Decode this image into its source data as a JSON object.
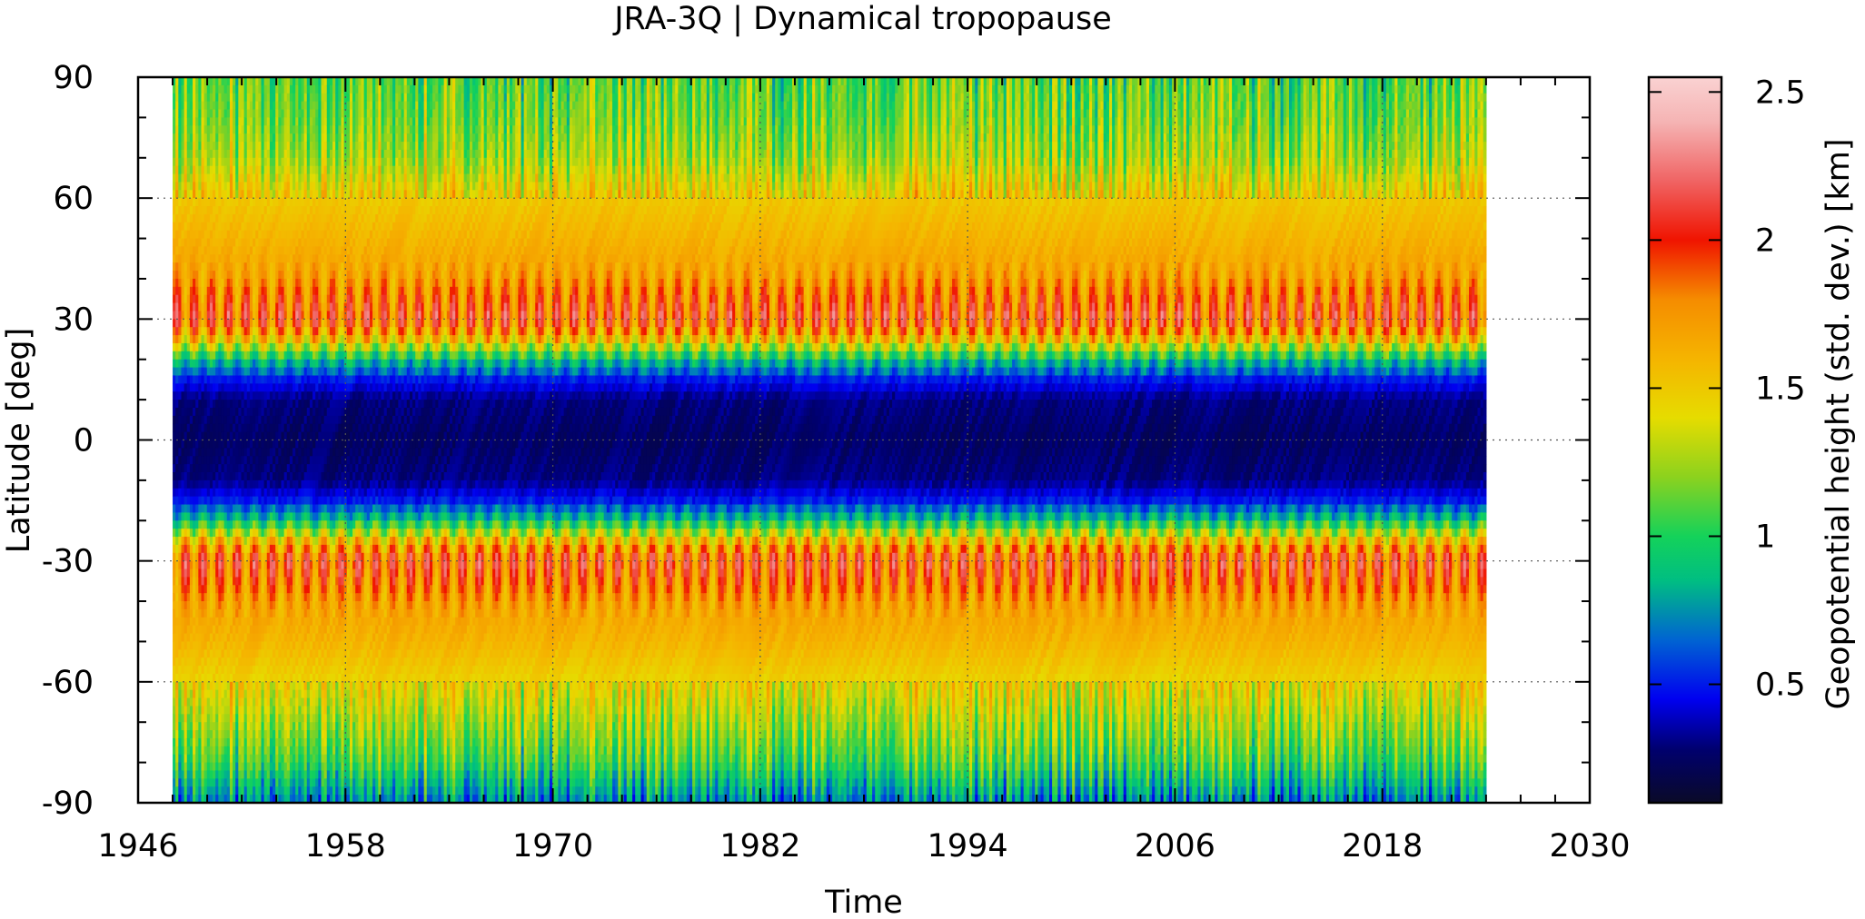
{
  "chart_data": {
    "type": "heatmap",
    "title": "JRA-3Q | Dynamical tropopause",
    "xlabel": "Time",
    "ylabel": "Latitude [deg]",
    "xlim": [
      1946,
      2030
    ],
    "ylim": [
      -90,
      90
    ],
    "x_ticks": [
      "1946",
      "1958",
      "1970",
      "1982",
      "1994",
      "2006",
      "2018",
      "2030"
    ],
    "y_ticks": [
      "-90",
      "-60",
      "-30",
      "0",
      "30",
      "60",
      "90"
    ],
    "data_x_range": [
      1948,
      2024
    ],
    "grid": true,
    "colorbar": {
      "label": "Geopotential height (std. dev.) [km]",
      "range": [
        0.1,
        2.55
      ],
      "ticks": [
        "0.5",
        "1",
        "1.5",
        "2",
        "2.5"
      ],
      "colormap": [
        [
          0.1,
          "#0a0a28"
        ],
        [
          0.28,
          "#00006e"
        ],
        [
          0.45,
          "#0000f0"
        ],
        [
          0.65,
          "#0064d2"
        ],
        [
          0.85,
          "#00be82"
        ],
        [
          1.0,
          "#14d25a"
        ],
        [
          1.2,
          "#8cd21e"
        ],
        [
          1.4,
          "#e6dc00"
        ],
        [
          1.6,
          "#f5b400"
        ],
        [
          1.8,
          "#f58c00"
        ],
        [
          2.0,
          "#f01400"
        ],
        [
          2.2,
          "#f06464"
        ],
        [
          2.4,
          "#f5b4b4"
        ],
        [
          2.55,
          "#fad2d2"
        ]
      ]
    },
    "latitude_profile_km": {
      "lat": [
        -90,
        -80,
        -70,
        -60,
        -50,
        -40,
        -30,
        -25,
        -20,
        -15,
        -10,
        0,
        10,
        15,
        20,
        25,
        30,
        40,
        50,
        60,
        70,
        80,
        90
      ],
      "mean": [
        0.7,
        1.05,
        1.25,
        1.45,
        1.6,
        1.7,
        1.95,
        1.55,
        0.9,
        0.5,
        0.3,
        0.25,
        0.3,
        0.5,
        0.9,
        1.55,
        1.95,
        1.7,
        1.6,
        1.5,
        1.25,
        1.15,
        1.1
      ]
    }
  }
}
